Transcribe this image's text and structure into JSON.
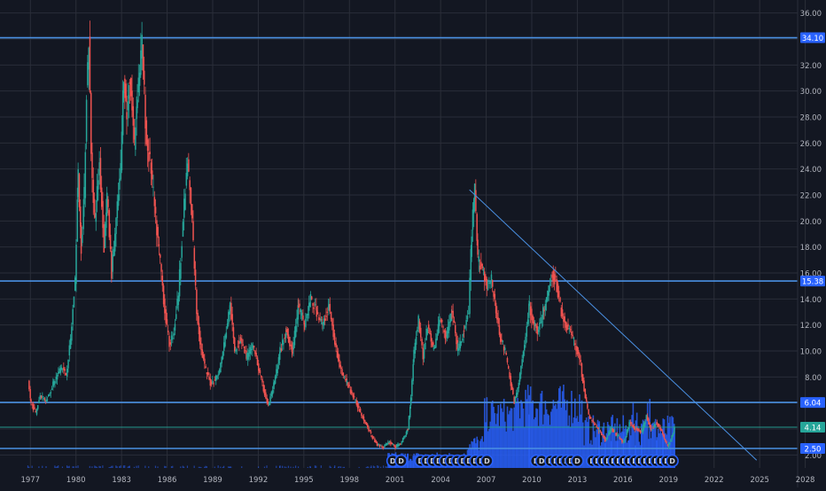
{
  "chart_data": {
    "type": "candlestick",
    "title": "",
    "xlabel": "",
    "ylabel": "",
    "xlim": [
      1975.0,
      2027.5
    ],
    "ylim": [
      1.0,
      37.0
    ],
    "y_ticks": [
      "2.00",
      "4.00",
      "6.00",
      "8.00",
      "10.00",
      "12.00",
      "14.00",
      "16.00",
      "18.00",
      "20.00",
      "22.00",
      "24.00",
      "26.00",
      "28.00",
      "30.00",
      "32.00",
      "34.00",
      "36.00"
    ],
    "x_ticks": [
      "1977",
      "1980",
      "1983",
      "1986",
      "1989",
      "1992",
      "1995",
      "1998",
      "2001",
      "2004",
      "2007",
      "2010",
      "2013",
      "2016",
      "2019",
      "2022",
      "2025",
      "2028"
    ],
    "grid": true,
    "price_series": [
      [
        1976.8,
        7.6
      ],
      [
        1977.0,
        6.0
      ],
      [
        1977.3,
        5.2
      ],
      [
        1977.6,
        6.6
      ],
      [
        1978.0,
        6.2
      ],
      [
        1978.5,
        7.6
      ],
      [
        1979.0,
        8.8
      ],
      [
        1979.3,
        8.2
      ],
      [
        1979.6,
        10.8
      ],
      [
        1979.9,
        15.5
      ],
      [
        1980.1,
        23.5
      ],
      [
        1980.3,
        18.0
      ],
      [
        1980.5,
        22.0
      ],
      [
        1980.65,
        30.0
      ],
      [
        1980.8,
        34.0
      ],
      [
        1980.95,
        25.0
      ],
      [
        1981.2,
        20.0
      ],
      [
        1981.5,
        24.5
      ],
      [
        1981.8,
        18.0
      ],
      [
        1982.0,
        22.0
      ],
      [
        1982.3,
        16.0
      ],
      [
        1982.6,
        20.0
      ],
      [
        1982.9,
        24.0
      ],
      [
        1983.1,
        31.5
      ],
      [
        1983.3,
        28.0
      ],
      [
        1983.5,
        31.0
      ],
      [
        1983.8,
        26.0
      ],
      [
        1984.0,
        30.0
      ],
      [
        1984.3,
        33.5
      ],
      [
        1984.6,
        26.0
      ],
      [
        1984.9,
        24.0
      ],
      [
        1985.2,
        20.0
      ],
      [
        1985.5,
        17.0
      ],
      [
        1985.8,
        13.0
      ],
      [
        1986.1,
        10.5
      ],
      [
        1986.4,
        11.5
      ],
      [
        1986.7,
        14.5
      ],
      [
        1987.0,
        20.0
      ],
      [
        1987.3,
        24.5
      ],
      [
        1987.6,
        20.0
      ],
      [
        1987.9,
        13.0
      ],
      [
        1988.2,
        10.0
      ],
      [
        1988.5,
        8.5
      ],
      [
        1988.8,
        7.5
      ],
      [
        1989.1,
        7.8
      ],
      [
        1989.4,
        8.5
      ],
      [
        1989.7,
        10.5
      ],
      [
        1990.1,
        13.5
      ],
      [
        1990.4,
        10.0
      ],
      [
        1990.8,
        11.0
      ],
      [
        1991.2,
        9.5
      ],
      [
        1991.6,
        10.5
      ],
      [
        1992.0,
        8.5
      ],
      [
        1992.3,
        7.0
      ],
      [
        1992.6,
        5.8
      ],
      [
        1993.0,
        7.5
      ],
      [
        1993.4,
        10.0
      ],
      [
        1993.8,
        11.5
      ],
      [
        1994.2,
        10.0
      ],
      [
        1994.6,
        13.5
      ],
      [
        1995.0,
        12.0
      ],
      [
        1995.4,
        14.0
      ],
      [
        1995.8,
        13.0
      ],
      [
        1996.2,
        12.0
      ],
      [
        1996.6,
        13.5
      ],
      [
        1997.0,
        10.5
      ],
      [
        1997.4,
        8.5
      ],
      [
        1997.8,
        7.5
      ],
      [
        1998.2,
        6.5
      ],
      [
        1998.6,
        5.5
      ],
      [
        1999.0,
        4.5
      ],
      [
        1999.4,
        3.5
      ],
      [
        1999.8,
        2.8
      ],
      [
        2000.2,
        2.6
      ],
      [
        2000.6,
        3.0
      ],
      [
        2001.0,
        2.6
      ],
      [
        2001.4,
        3.0
      ],
      [
        2001.8,
        4.0
      ],
      [
        2002.0,
        6.5
      ],
      [
        2002.2,
        10.0
      ],
      [
        2002.5,
        12.5
      ],
      [
        2002.8,
        9.5
      ],
      [
        2003.1,
        12.0
      ],
      [
        2003.5,
        10.0
      ],
      [
        2003.9,
        12.5
      ],
      [
        2004.3,
        11.0
      ],
      [
        2004.7,
        13.0
      ],
      [
        2005.1,
        10.0
      ],
      [
        2005.5,
        11.5
      ],
      [
        2005.8,
        13.0
      ],
      [
        2006.0,
        19.0
      ],
      [
        2006.2,
        22.5
      ],
      [
        2006.4,
        17.0
      ],
      [
        2006.7,
        16.5
      ],
      [
        2007.0,
        15.0
      ],
      [
        2007.3,
        15.5
      ],
      [
        2007.6,
        13.0
      ],
      [
        2007.9,
        11.0
      ],
      [
        2008.2,
        10.0
      ],
      [
        2008.5,
        8.0
      ],
      [
        2008.8,
        6.0
      ],
      [
        2009.1,
        7.5
      ],
      [
        2009.4,
        10.0
      ],
      [
        2009.8,
        13.5
      ],
      [
        2010.1,
        12.0
      ],
      [
        2010.4,
        11.5
      ],
      [
        2010.7,
        13.0
      ],
      [
        2011.0,
        14.5
      ],
      [
        2011.3,
        16.0
      ],
      [
        2011.6,
        15.0
      ],
      [
        2011.9,
        13.0
      ],
      [
        2012.2,
        12.0
      ],
      [
        2012.5,
        11.5
      ],
      [
        2012.8,
        10.5
      ],
      [
        2013.1,
        9.5
      ],
      [
        2013.4,
        7.0
      ],
      [
        2013.7,
        5.0
      ],
      [
        2014.0,
        4.5
      ],
      [
        2014.4,
        3.8
      ],
      [
        2014.8,
        3.2
      ],
      [
        2015.2,
        4.0
      ],
      [
        2015.6,
        3.5
      ],
      [
        2016.0,
        3.0
      ],
      [
        2016.4,
        4.5
      ],
      [
        2016.8,
        4.0
      ],
      [
        2017.2,
        3.8
      ],
      [
        2017.5,
        5.0
      ],
      [
        2017.8,
        4.0
      ],
      [
        2018.2,
        4.5
      ],
      [
        2018.6,
        3.5
      ],
      [
        2018.9,
        2.6
      ],
      [
        2019.1,
        3.2
      ],
      [
        2019.35,
        4.14
      ]
    ],
    "horizontal_levels": [
      {
        "value": 34.1,
        "label": "34.10",
        "line_color": "#4a90e2",
        "label_bg": "#2962ff"
      },
      {
        "value": 15.38,
        "label": "15.38",
        "line_color": "#4a90e2",
        "label_bg": "#2962ff"
      },
      {
        "value": 6.04,
        "label": "6.04",
        "line_color": "#4a90e2",
        "label_bg": "#2962ff"
      },
      {
        "value": 2.5,
        "label": "2.50",
        "line_color": "#4a90e2",
        "label_bg": "#2962ff"
      }
    ],
    "current_price": {
      "value": 4.14,
      "label": "4.14",
      "line_color": "#26a69a",
      "label_bg": "#26a69a"
    },
    "trendline": {
      "x1": 2005.9,
      "y1": 22.4,
      "x2": 2024.8,
      "y2": 1.6,
      "color": "#4a90e2"
    },
    "dividend_markers_x": [
      2000.85,
      2001.4,
      2002.7,
      2003.1,
      2003.5,
      2003.9,
      2004.3,
      2004.7,
      2005.1,
      2005.5,
      2005.9,
      2006.3,
      2006.7,
      2007.05,
      2010.3,
      2010.65,
      2011.25,
      2011.6,
      2011.95,
      2012.3,
      2012.6,
      2013.0,
      2014.0,
      2014.35,
      2014.7,
      2015.05,
      2015.4,
      2015.75,
      2016.1,
      2016.45,
      2016.8,
      2017.15,
      2017.5,
      2017.85,
      2018.2,
      2018.55,
      2018.9,
      2019.25
    ],
    "dividend_marker_label": "D",
    "volume_color": "#2962ff",
    "up_color": "#26a69a",
    "down_color": "#ef5350",
    "background_color": "#131722",
    "grid_color": "#2a2e39",
    "text_color": "#b2b5be"
  }
}
